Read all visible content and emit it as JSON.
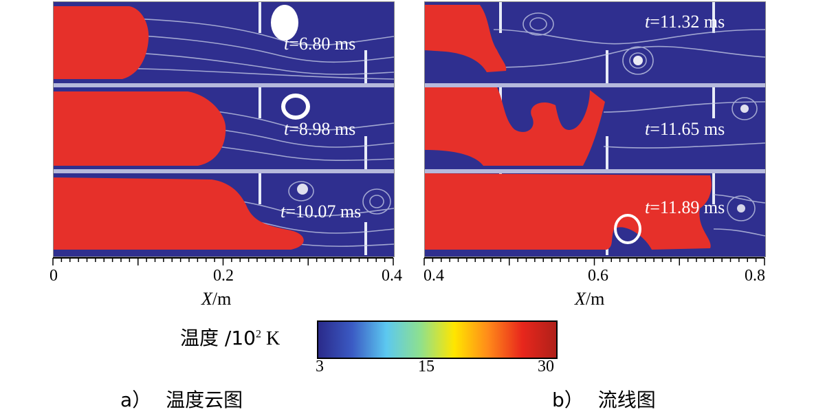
{
  "panel_a": {
    "time_labels": [
      {
        "t": "t",
        "rest": "=6.80 ms"
      },
      {
        "t": "t",
        "rest": "=8.98 ms"
      },
      {
        "t": "t",
        "rest": "=10.07 ms"
      }
    ],
    "axis": {
      "ticks": [
        "0",
        "0.2",
        "0.4"
      ],
      "title_var": "X",
      "title_unit": "/m"
    },
    "caption_letter": "a）",
    "caption_text": "温度云图"
  },
  "panel_b": {
    "time_labels": [
      {
        "t": "t",
        "rest": "=11.32 ms"
      },
      {
        "t": "t",
        "rest": "=11.65 ms"
      },
      {
        "t": "t",
        "rest": "=11.89 ms"
      }
    ],
    "axis": {
      "ticks": [
        "0.4",
        "0.6",
        "0.8"
      ],
      "title_var": "X",
      "title_unit": "/m"
    },
    "caption_letter": "b）",
    "caption_text": "流线图"
  },
  "colorbar": {
    "title": "温度 /10",
    "title_sup": "2",
    "title_unit": " K",
    "ticks": [
      "3",
      "15",
      "30"
    ],
    "colors": [
      "#2a2a8a",
      "#3b5bc4",
      "#5cc8f0",
      "#8ee08e",
      "#ffe600",
      "#ff8a1a",
      "#e8271c",
      "#b0201a"
    ]
  },
  "colors": {
    "background": "#2f2f8f",
    "flame": "#e6302a",
    "streamline": "#c9cfe8"
  }
}
